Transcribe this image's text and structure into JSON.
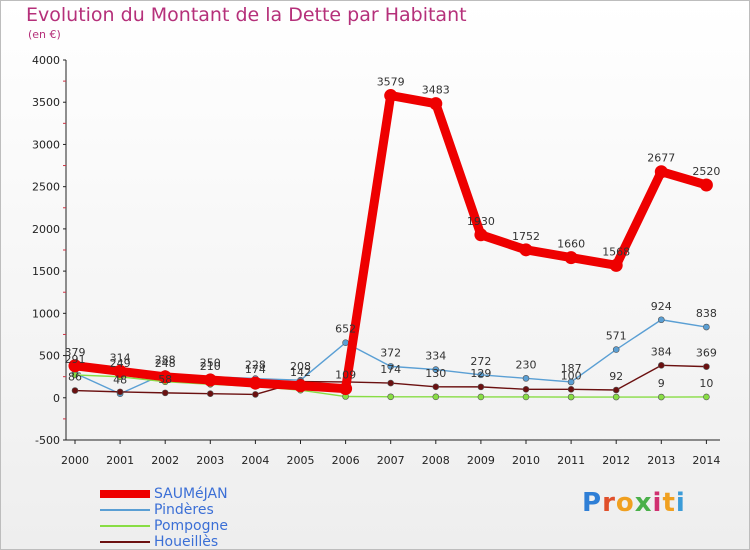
{
  "header": {
    "title": "Evolution du Montant de la Dette par Habitant",
    "subtitle": "(en €)"
  },
  "logo": {
    "text": "Proxiti",
    "letter_colors": [
      "#2f7fd6",
      "#e0502b",
      "#f0a020",
      "#4ab04a",
      "#d03070",
      "#f0a020",
      "#3b9cd8"
    ]
  },
  "chart_data": {
    "type": "line",
    "title": "Evolution du Montant de la Dette par Habitant",
    "subtitle": "(en €)",
    "xlabel": "",
    "ylabel": "",
    "x": [
      "2000",
      "2001",
      "2002",
      "2003",
      "2004",
      "2005",
      "2006",
      "2007",
      "2008",
      "2009",
      "2010",
      "2011",
      "2012",
      "2013",
      "2014"
    ],
    "ylim": [
      -500,
      4000
    ],
    "yticks": [
      -500,
      0,
      500,
      1000,
      1500,
      2000,
      2500,
      3000,
      3500,
      4000
    ],
    "grid": false,
    "legend_position": "bottom-left",
    "series": [
      {
        "name": "SAUMéJAN",
        "color": "#ee0000",
        "values": [
          379,
          314,
          248,
          210,
          174,
          142,
          109,
          3579,
          3483,
          1930,
          1752,
          1660,
          1568,
          2677,
          2520
        ],
        "labels": [
          "379",
          "314",
          "248",
          "210",
          "174",
          "142",
          "109",
          "3579",
          "3483",
          "1930",
          "1752",
          "1660",
          "1568",
          "2677",
          "2520"
        ]
      },
      {
        "name": "Pindères",
        "color": "#5a9fd4",
        "values": [
          291,
          48,
          288,
          250,
          228,
          208,
          652,
          372,
          334,
          272,
          230,
          187,
          571,
          924,
          838
        ],
        "labels": [
          "291",
          "48",
          "288",
          "250",
          "228",
          "208",
          "652",
          "372",
          "334",
          "272",
          "230",
          "187",
          "571",
          "924",
          "838"
        ]
      },
      {
        "name": "Pompogne",
        "color": "#88dd44",
        "values": [
          270,
          249,
          190,
          160,
          135,
          90,
          15,
          12,
          11,
          10,
          10,
          9,
          9,
          9,
          10
        ],
        "labels": [
          "",
          "249",
          "",
          "",
          "",
          "",
          "",
          "",
          "",
          "",
          "",
          "",
          "",
          "9",
          "10"
        ]
      },
      {
        "name": "Houeillès",
        "color": "#6b1010",
        "values": [
          86,
          70,
          58,
          48,
          40,
          192,
          188,
          174,
          130,
          129,
          100,
          100,
          92,
          384,
          369
        ],
        "labels": [
          "86",
          "",
          "58",
          "",
          "",
          "",
          "",
          "174",
          "130",
          "129",
          "",
          "100",
          "92",
          "384",
          "369"
        ]
      }
    ]
  }
}
